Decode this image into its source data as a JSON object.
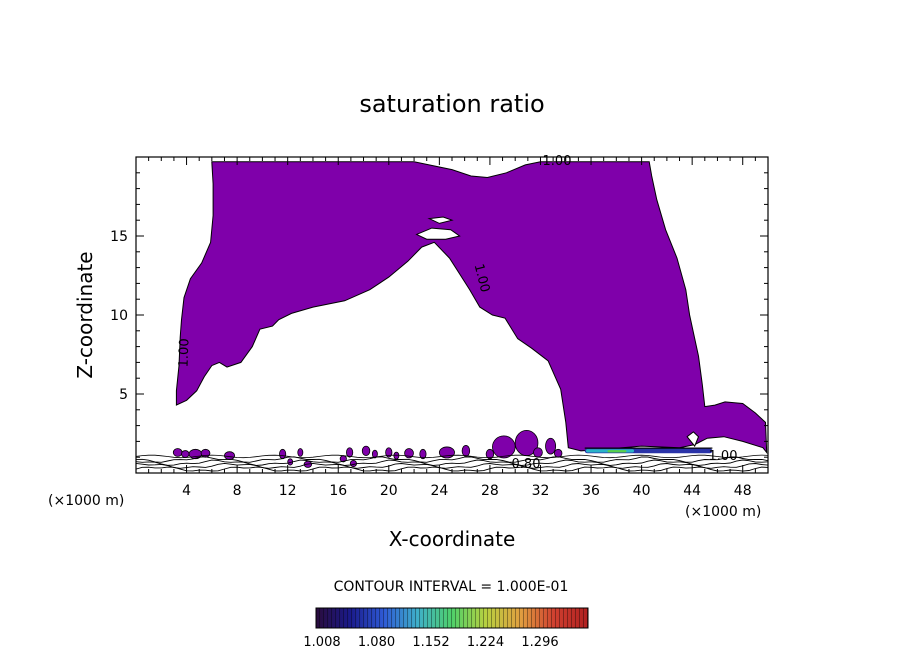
{
  "chart_data": {
    "type": "contour",
    "title": "saturation ratio",
    "xlabel": "X-coordinate",
    "ylabel": "Z-coordinate",
    "xlim": [
      0,
      50
    ],
    "ylim": [
      0,
      20
    ],
    "x_unit_left": "(×1000 m)",
    "x_unit_right": "(×1000 m)",
    "x_ticks": [
      4,
      8,
      12,
      16,
      20,
      24,
      28,
      32,
      36,
      40,
      44,
      48
    ],
    "y_ticks": [
      5,
      10,
      15
    ],
    "contour_interval_text": "CONTOUR INTERVAL = 1.000E-01",
    "contour_labels": [
      "1.00",
      "1.00",
      "1.00",
      "1.00",
      "0.80"
    ],
    "colorbar": {
      "ticks": [
        "1.008",
        "1.080",
        "1.152",
        "1.224",
        "1.296"
      ],
      "colors": [
        "#2a0c3c",
        "#1a1a8a",
        "#2f5bd6",
        "#3fb0c8",
        "#4fd06a",
        "#b8d040",
        "#e0a040",
        "#d04030",
        "#b02020"
      ]
    },
    "region_color": "#7f00aa",
    "region_level": 1.008,
    "region_outline": [
      [
        3.2,
        4.3
      ],
      [
        4.0,
        4.6
      ],
      [
        4.8,
        5.2
      ],
      [
        5.4,
        6.1
      ],
      [
        6.0,
        6.8
      ],
      [
        6.6,
        7.0
      ],
      [
        7.2,
        6.7
      ],
      [
        8.3,
        7.0
      ],
      [
        9.2,
        8.0
      ],
      [
        9.8,
        9.1
      ],
      [
        10.8,
        9.3
      ],
      [
        11.3,
        9.7
      ],
      [
        12.3,
        10.1
      ],
      [
        14.0,
        10.5
      ],
      [
        16.5,
        10.9
      ],
      [
        18.5,
        11.6
      ],
      [
        20.0,
        12.4
      ],
      [
        21.5,
        13.4
      ],
      [
        22.6,
        14.3
      ],
      [
        23.6,
        14.6
      ],
      [
        24.8,
        13.6
      ],
      [
        25.6,
        12.6
      ],
      [
        26.4,
        11.6
      ],
      [
        27.2,
        10.5
      ],
      [
        28.2,
        10.0
      ],
      [
        29.2,
        9.8
      ],
      [
        30.2,
        8.5
      ],
      [
        31.3,
        7.9
      ],
      [
        32.6,
        7.1
      ],
      [
        33.6,
        5.3
      ],
      [
        34.0,
        3.2
      ],
      [
        34.2,
        1.6
      ],
      [
        35.2,
        1.4
      ],
      [
        37.0,
        1.5
      ],
      [
        40.0,
        1.7
      ],
      [
        43.0,
        1.6
      ],
      [
        44.2,
        1.8
      ],
      [
        45.2,
        2.2
      ],
      [
        46.5,
        2.3
      ],
      [
        48.0,
        2.0
      ],
      [
        49.6,
        1.6
      ],
      [
        49.9,
        1.3
      ],
      [
        49.8,
        3.2
      ],
      [
        49.0,
        3.8
      ],
      [
        48.0,
        4.4
      ],
      [
        46.6,
        4.5
      ],
      [
        45.8,
        4.3
      ],
      [
        45.0,
        4.2
      ],
      [
        44.8,
        5.6
      ],
      [
        44.5,
        7.4
      ],
      [
        43.8,
        10.0
      ],
      [
        43.5,
        11.6
      ],
      [
        42.8,
        13.6
      ],
      [
        41.9,
        15.4
      ],
      [
        41.2,
        17.3
      ],
      [
        40.8,
        18.8
      ],
      [
        40.6,
        19.7
      ],
      [
        32.0,
        19.7
      ],
      [
        30.8,
        19.5
      ],
      [
        29.3,
        19.0
      ],
      [
        27.8,
        18.7
      ],
      [
        26.5,
        18.8
      ],
      [
        25.0,
        19.2
      ],
      [
        22.0,
        19.7
      ],
      [
        6.0,
        19.7
      ],
      [
        6.1,
        18.3
      ],
      [
        6.1,
        16.3
      ],
      [
        5.9,
        14.6
      ],
      [
        5.2,
        13.3
      ],
      [
        4.3,
        12.3
      ],
      [
        3.8,
        11.1
      ],
      [
        3.6,
        9.7
      ],
      [
        3.5,
        8.6
      ],
      [
        3.4,
        6.8
      ],
      [
        3.2,
        5.2
      ]
    ],
    "holes": [
      [
        [
          22.2,
          15.1
        ],
        [
          23.4,
          15.5
        ],
        [
          24.9,
          15.4
        ],
        [
          25.6,
          15.0
        ],
        [
          24.5,
          14.8
        ],
        [
          23.0,
          14.8
        ]
      ],
      [
        [
          23.2,
          16.1
        ],
        [
          24.3,
          16.2
        ],
        [
          25.0,
          16.0
        ],
        [
          24.0,
          15.8
        ]
      ],
      [
        [
          43.6,
          2.3
        ],
        [
          44.1,
          2.6
        ],
        [
          44.5,
          2.3
        ],
        [
          44.2,
          1.7
        ]
      ]
    ],
    "blobs": [
      [
        3.3,
        1.3,
        0.35,
        0.25
      ],
      [
        3.9,
        1.2,
        0.3,
        0.22
      ],
      [
        4.7,
        1.2,
        0.5,
        0.3
      ],
      [
        5.5,
        1.25,
        0.35,
        0.25
      ],
      [
        7.4,
        1.1,
        0.4,
        0.25
      ],
      [
        11.6,
        1.2,
        0.25,
        0.3
      ],
      [
        12.2,
        0.7,
        0.2,
        0.2
      ],
      [
        13.0,
        1.3,
        0.2,
        0.25
      ],
      [
        13.6,
        0.55,
        0.3,
        0.2
      ],
      [
        16.4,
        0.9,
        0.25,
        0.2
      ],
      [
        16.9,
        1.3,
        0.25,
        0.3
      ],
      [
        17.2,
        0.6,
        0.25,
        0.2
      ],
      [
        18.2,
        1.4,
        0.3,
        0.3
      ],
      [
        18.9,
        1.2,
        0.2,
        0.25
      ],
      [
        20.0,
        1.3,
        0.25,
        0.3
      ],
      [
        20.6,
        1.1,
        0.2,
        0.22
      ],
      [
        21.6,
        1.25,
        0.35,
        0.3
      ],
      [
        22.7,
        1.2,
        0.25,
        0.3
      ],
      [
        24.6,
        1.3,
        0.6,
        0.35
      ],
      [
        26.1,
        1.4,
        0.3,
        0.35
      ],
      [
        29.1,
        1.65,
        0.9,
        0.7
      ],
      [
        30.9,
        1.9,
        0.9,
        0.8
      ],
      [
        32.8,
        1.7,
        0.4,
        0.5
      ],
      [
        31.8,
        1.3,
        0.35,
        0.3
      ],
      [
        33.4,
        1.25,
        0.3,
        0.25
      ],
      [
        28.0,
        1.2,
        0.3,
        0.3
      ]
    ],
    "inner_shades": [
      {
        "color": "#2a33a8",
        "x": [
          35.5,
          45.6
        ],
        "y": [
          1.25,
          1.55
        ]
      },
      {
        "color": "#2bb3c8",
        "x": [
          35.6,
          39.4
        ],
        "y": [
          1.3,
          1.5
        ]
      },
      {
        "color": "#58d04a",
        "x": [
          37.3,
          38.8
        ],
        "y": [
          1.3,
          1.45
        ]
      }
    ]
  }
}
